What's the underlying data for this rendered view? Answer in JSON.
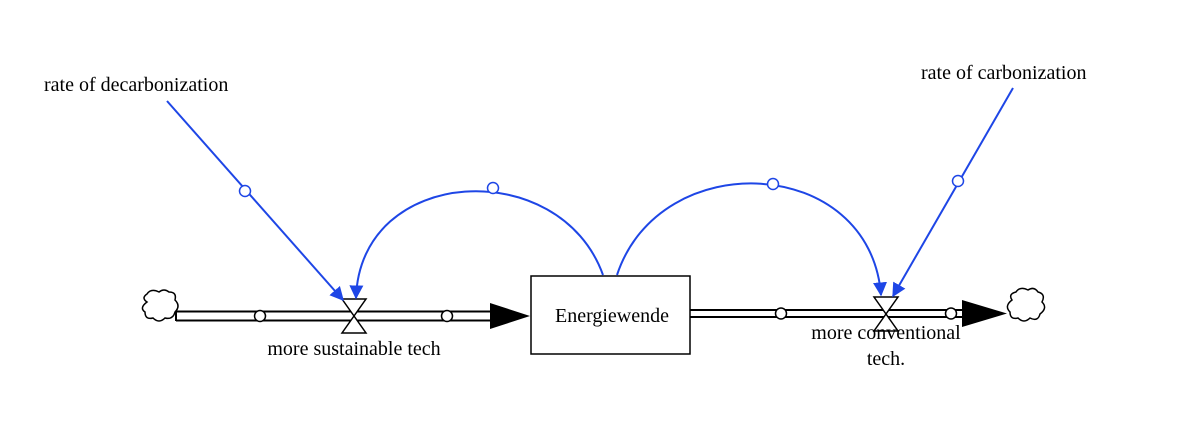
{
  "diagram": {
    "stock": {
      "label": "Energiewende"
    },
    "flows": [
      {
        "id": "inflow",
        "label": "more sustainable tech"
      },
      {
        "id": "outflow",
        "label_line1": "more conventional",
        "label_line2": "tech."
      }
    ],
    "auxiliaries": [
      {
        "id": "rate-decarb",
        "label": "rate of decarbonization"
      },
      {
        "id": "rate-carb",
        "label": "rate of carbonization"
      }
    ],
    "colors": {
      "link": "#1e46e6",
      "stroke": "#000000",
      "background": "#ffffff"
    },
    "icons": [
      "cloud-source-icon",
      "cloud-sink-icon",
      "valve-icon",
      "arrowhead-icon"
    ]
  }
}
